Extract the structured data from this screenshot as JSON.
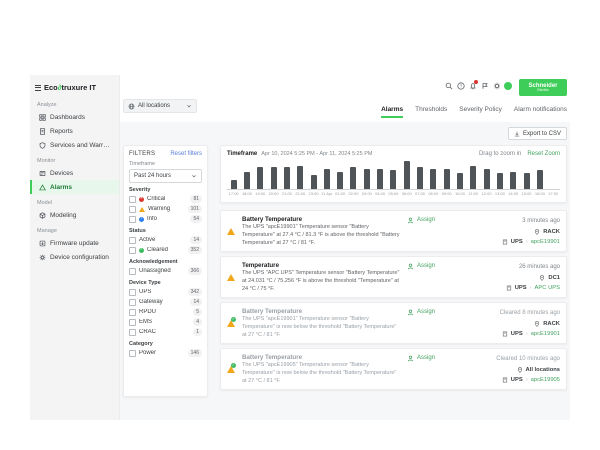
{
  "brand": {
    "app_name_pre": "Eco",
    "app_name_post": "truxure IT",
    "schneider_line1": "Schneider",
    "schneider_line2": "Electric"
  },
  "topbar": {
    "location_selector": "All locations"
  },
  "tabs": {
    "items": [
      {
        "label": "Alarms"
      },
      {
        "label": "Thresholds"
      },
      {
        "label": "Severity Policy"
      },
      {
        "label": "Alarm notifications"
      }
    ]
  },
  "sidebar": {
    "sections": [
      {
        "label": "Analyze",
        "items": [
          {
            "label": "Dashboards"
          },
          {
            "label": "Reports"
          },
          {
            "label": "Services and Warranties"
          }
        ]
      },
      {
        "label": "Monitor",
        "items": [
          {
            "label": "Devices"
          },
          {
            "label": "Alarms"
          }
        ]
      },
      {
        "label": "Model",
        "items": [
          {
            "label": "Modeling"
          }
        ]
      },
      {
        "label": "Manage",
        "items": [
          {
            "label": "Firmware update"
          },
          {
            "label": "Device configuration"
          }
        ]
      }
    ]
  },
  "filters": {
    "title": "FILTERS",
    "reset_label": "Reset filters",
    "timeframe_label": "Timeframe",
    "timeframe_value": "Past 24 hours",
    "groups": [
      {
        "label": "Severity",
        "options": [
          {
            "name": "Critical",
            "count": "81"
          },
          {
            "name": "Warning",
            "count": "101"
          },
          {
            "name": "Info",
            "count": "54"
          }
        ]
      },
      {
        "label": "Status",
        "options": [
          {
            "name": "Active",
            "count": "14"
          },
          {
            "name": "Cleared",
            "count": "352"
          }
        ]
      },
      {
        "label": "Acknowledgement",
        "options": [
          {
            "name": "Unassigned",
            "count": "366"
          }
        ]
      },
      {
        "label": "Device Type",
        "options": [
          {
            "name": "UPS",
            "count": "342"
          },
          {
            "name": "Gateway",
            "count": "14"
          },
          {
            "name": "RPDU",
            "count": "5"
          },
          {
            "name": "EMS",
            "count": "4"
          },
          {
            "name": "CRAC",
            "count": "1"
          }
        ]
      },
      {
        "label": "Category",
        "options": [
          {
            "name": "Power",
            "count": "146"
          }
        ]
      }
    ]
  },
  "toolbar": {
    "export_label": "Export to CSV"
  },
  "chart": {
    "timeframe_label": "Timeframe",
    "range": "Apr 10, 2024 5:25 PM - Apr 11, 2024 5:25 PM",
    "drag_hint": "Drag to zoom in",
    "reset_zoom_label": "Reset Zoom"
  },
  "chart_data": {
    "type": "bar",
    "title": "",
    "xlabel": "",
    "ylabel": "",
    "legend": false,
    "categories": [
      "17:00",
      "18:00",
      "19:00",
      "20:00",
      "21:00",
      "22:00",
      "23:00",
      "11 Apr",
      "01:00",
      "02:00",
      "03:00",
      "04:00",
      "05:00",
      "06:00",
      "07:00",
      "08:00",
      "09:00",
      "10:00",
      "11:00",
      "12:00",
      "13:00",
      "14:00",
      "15:00",
      "16:00",
      "17:00"
    ],
    "values": [
      12,
      22,
      28,
      28,
      28,
      30,
      18,
      26,
      22,
      28,
      26,
      26,
      24,
      36,
      28,
      26,
      26,
      20,
      30,
      26,
      20,
      22,
      20,
      24,
      0
    ],
    "ylim": [
      0,
      36
    ],
    "bar_color": "#4f5458"
  },
  "actions": {
    "assign_label": "Assign"
  },
  "alarms": [
    {
      "severity": "warning",
      "title": "Battery Temperature",
      "description": "The UPS \"apcE19901\" Temperature sensor \"Battery Temperature\" at 27.4 °C / 81.3 °F is above the threshold \"Battery Temperature\" at 27 °C / 81 °F.",
      "time": "3 minutes ago",
      "location": "RACK",
      "device_type": "UPS",
      "device_name": "apcE19901"
    },
    {
      "severity": "warning",
      "title": "Temperature",
      "description": "The UPS \"APC UPS\" Temperature sensor \"Battery Temperature\" at 24.031 °C / 75.256 °F is above the threshold \"Temperature\" at 24 °C / 75 °F.",
      "time": "26 minutes ago",
      "location": "DC1",
      "device_type": "UPS",
      "device_name": "APC UPS"
    },
    {
      "severity": "cleared",
      "title": "Battery Temperature",
      "description": "The UPS \"apcE19901\" Temperature sensor \"Battery Temperature\" is now below the threshold \"Battery Temperature\" at 27 °C / 81 °F.",
      "time": "Cleared 8 minutes ago",
      "location": "RACK",
      "device_type": "UPS",
      "device_name": "apcE19901"
    },
    {
      "severity": "cleared",
      "title": "Battery Temperature",
      "description": "The UPS \"apcE19905\" Temperature sensor \"Battery Temperature\" is now below the threshold \"Battery Temperature\" at 27 °C / 81 °F.",
      "time": "Cleared 10 minutes ago",
      "location": "All locations",
      "device_type": "UPS",
      "device_name": "apcE19905"
    }
  ],
  "colors": {
    "brand_green": "#3dcd58",
    "link_green": "#43a25f",
    "warning_amber": "#f2a71b",
    "critical_red": "#d9342b",
    "info_blue": "#2d7ff0",
    "cleared_green": "#3dbb61",
    "bar_grey": "#4f5458"
  }
}
